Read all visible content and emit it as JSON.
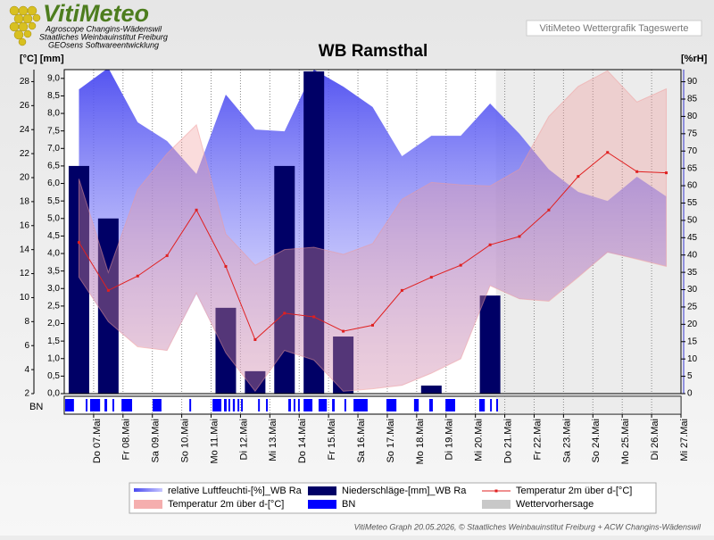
{
  "chart_data": {
    "type": "combo",
    "title": "WB Ramsthal",
    "logo": {
      "name": "VitiMeteo",
      "lines": [
        "Agroscope Changins-Wädenswil",
        "Staatliches Weinbauinstitut Freiburg",
        "GEOsens Softwareentwicklung"
      ]
    },
    "header_box": "VitiMeteo Wettergrafik Tageswerte",
    "y_label_left": "[°C] [mm]",
    "y_label_right": "[%rH]",
    "footer": "VitiMeteo Graph 20.05.2026, © Staatliches Weinbauinstitut Freiburg + ACW Changins-Wädenswil",
    "x_labels": [
      "Do 07.Mai",
      "Fr 08.Mai",
      "Sa 09.Mai",
      "So 10.Mai",
      "Mo 11.Mai",
      "Di 12.Mai",
      "Mi 13.Mai",
      "Do 14.Mai",
      "Fr 15.Mai",
      "Sa 16.Mai",
      "So 17.Mai",
      "Mo 18.Mai",
      "Di 19.Mai",
      "Mi 20.Mai",
      "Do 21.Mai",
      "Fr 22.Mai",
      "Sa 23.Mai",
      "So 24.Mai",
      "Mo 25.Mai",
      "Di 26.Mai",
      "Mi 27.Mai"
    ],
    "ylim": [
      2,
      29
    ],
    "yticks": [
      2,
      4,
      6,
      8,
      10,
      12,
      14,
      16,
      18,
      20,
      22,
      24,
      26,
      28
    ],
    "y3lim": [
      0,
      9.25
    ],
    "y3ticks": [
      {
        "value": 0,
        "label": "0,0"
      },
      {
        "value": 0.5,
        "label": "0,5"
      },
      {
        "value": 1,
        "label": "1,0"
      },
      {
        "value": 1.5,
        "label": "1,5"
      },
      {
        "value": 2,
        "label": "2,0"
      },
      {
        "value": 2.5,
        "label": "2,5"
      },
      {
        "value": 3,
        "label": "3,0"
      },
      {
        "value": 3.5,
        "label": "3,5"
      },
      {
        "value": 4,
        "label": "4,0"
      },
      {
        "value": 4.5,
        "label": "4,5"
      },
      {
        "value": 5,
        "label": "5,0"
      },
      {
        "value": 5.5,
        "label": "5,5"
      },
      {
        "value": 6,
        "label": "6,0"
      },
      {
        "value": 6.5,
        "label": "6,5"
      },
      {
        "value": 7,
        "label": "7,0"
      },
      {
        "value": 7.5,
        "label": "7,5"
      },
      {
        "value": 8,
        "label": "8,0"
      },
      {
        "value": 8.5,
        "label": "8,5"
      },
      {
        "value": 9,
        "label": "9,0"
      }
    ],
    "y2lim": [
      0,
      93.5
    ],
    "y2ticks": [
      0,
      5,
      10,
      15,
      20,
      25,
      30,
      35,
      40,
      45,
      50,
      55,
      60,
      65,
      70,
      75,
      80,
      85,
      90
    ],
    "series": [
      {
        "name": "relative Luftfeuchti-[%]_WB Ra",
        "type": "band",
        "axis": "y2",
        "color": "#5555ee",
        "high": [
          87.8,
          94,
          78.3,
          72.9,
          63.4,
          86.3,
          76.2,
          75.7,
          93.5,
          88.6,
          82.7,
          68.5,
          74.4,
          74.4,
          83.7,
          75.0,
          64.7,
          58.2,
          55.6,
          62.6,
          56.9
        ],
        "low": [
          33.7,
          20.4,
          13.7,
          12.4,
          28.6,
          11.9,
          0.8,
          12.6,
          9.5,
          0.8,
          1.5,
          2.3,
          5.9,
          10.0,
          31.2,
          27.3,
          26.8,
          33.7,
          40.7,
          38.9,
          36.8
        ]
      },
      {
        "name": "Niederschläge-[mm]_WB Ra",
        "type": "bar",
        "axis": "y3",
        "color": "#000066",
        "values": [
          6.5,
          5.0,
          0,
          0,
          0,
          2.45,
          0.64,
          6.5,
          9.2,
          1.63,
          0,
          0,
          0.23,
          0,
          2.8,
          0,
          0,
          0,
          0,
          0,
          0
        ]
      },
      {
        "name": "Temperatur 2m über d-[°C]",
        "type": "line",
        "color": "#e02020",
        "values": [
          14.6,
          10.6,
          11.8,
          13.5,
          17.3,
          12.6,
          6.5,
          8.7,
          8.4,
          7.2,
          7.7,
          10.6,
          11.7,
          12.7,
          14.4,
          15.1,
          17.3,
          20.1,
          22.1,
          20.5,
          20.4
        ]
      },
      {
        "name": "Temperatur 2m über d-[°C]",
        "type": "band",
        "color": "#f29a9a",
        "high": [
          19.9,
          12.1,
          19.0,
          22.0,
          24.4,
          15.3,
          12.7,
          14.0,
          14.2,
          13.6,
          14.5,
          18.2,
          19.6,
          19.4,
          19.3,
          20.7,
          25.1,
          27.6,
          28.9,
          26.3,
          27.4
        ],
        "low": [
          11.7,
          8.0,
          5.9,
          5.6,
          10.4,
          5.4,
          2.2,
          5.6,
          4.8,
          2.2,
          2.4,
          2.7,
          3.7,
          4.9,
          11.0,
          9.9,
          9.7,
          11.7,
          13.8,
          13.2,
          12.6
        ]
      },
      {
        "name": "BN",
        "type": "intervals",
        "color": "#0000ff",
        "intervals": [
          [
            0.03,
            0.33
          ],
          [
            0.73,
            0.79
          ],
          [
            0.88,
            1.22
          ],
          [
            1.37,
            1.46
          ],
          [
            1.64,
            1.7
          ],
          [
            1.95,
            2.31
          ],
          [
            3.01,
            3.31
          ],
          [
            4.26,
            4.32
          ],
          [
            5.05,
            5.35
          ],
          [
            5.44,
            5.53
          ],
          [
            5.59,
            5.65
          ],
          [
            5.74,
            5.81
          ],
          [
            5.9,
            5.96
          ],
          [
            6.02,
            6.08
          ],
          [
            6.6,
            6.66
          ],
          [
            6.87,
            6.93
          ],
          [
            7.63,
            7.72
          ],
          [
            7.81,
            7.87
          ],
          [
            7.96,
            8.02
          ],
          [
            8.15,
            8.45
          ],
          [
            8.66,
            8.94
          ],
          [
            9.12,
            9.21
          ],
          [
            9.54,
            9.6
          ],
          [
            9.85,
            10.33
          ],
          [
            10.97,
            11.31
          ],
          [
            11.91,
            12.07
          ],
          [
            12.43,
            12.55
          ],
          [
            12.98,
            13.31
          ],
          [
            14.13,
            14.32
          ],
          [
            14.5,
            14.56
          ],
          [
            14.71,
            14.77
          ]
        ]
      }
    ],
    "forecast": {
      "name": "Wettervorhersage",
      "color": "#c8c8c8",
      "start": 14.7
    }
  }
}
